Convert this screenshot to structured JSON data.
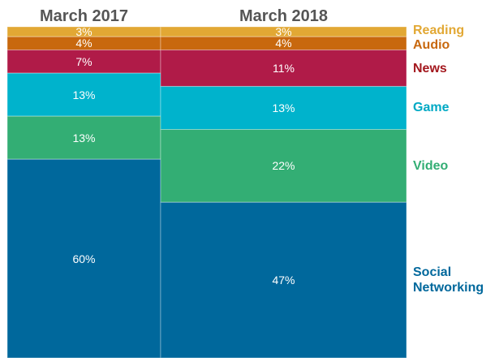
{
  "chart_data": {
    "type": "bar",
    "subtype": "marimekko-100-percent-stacked",
    "title": "",
    "categories": [
      "March 2017",
      "March 2018"
    ],
    "series": [
      {
        "name": "Reading",
        "color": "#E2A834",
        "values": [
          3,
          3
        ]
      },
      {
        "name": "Audio",
        "color": "#C8680E",
        "values": [
          4,
          4
        ]
      },
      {
        "name": "News",
        "color": "#B01B48",
        "values": [
          7,
          11
        ]
      },
      {
        "name": "Game",
        "color": "#00B3CC",
        "values": [
          13,
          13
        ]
      },
      {
        "name": "Video",
        "color": "#33AE74",
        "values": [
          13,
          22
        ]
      },
      {
        "name": "Social Networking",
        "color": "#00689C",
        "values": [
          60,
          47
        ]
      }
    ],
    "value_labels": [
      [
        "3%",
        "4%",
        "7%",
        "13%",
        "13%",
        "60%"
      ],
      [
        "3%",
        "4%",
        "11%",
        "13%",
        "22%",
        "47%"
      ]
    ],
    "legend_placement": "right",
    "legend_colors": {
      "Reading": "#E2A834",
      "Audio": "#C8680E",
      "News": "#A3171D",
      "Game": "#00A9C4",
      "Video": "#33AE74",
      "Social Networking": "#00689C"
    },
    "ylim": [
      0,
      100
    ]
  },
  "headers": [
    "March 2017",
    "March 2018"
  ]
}
